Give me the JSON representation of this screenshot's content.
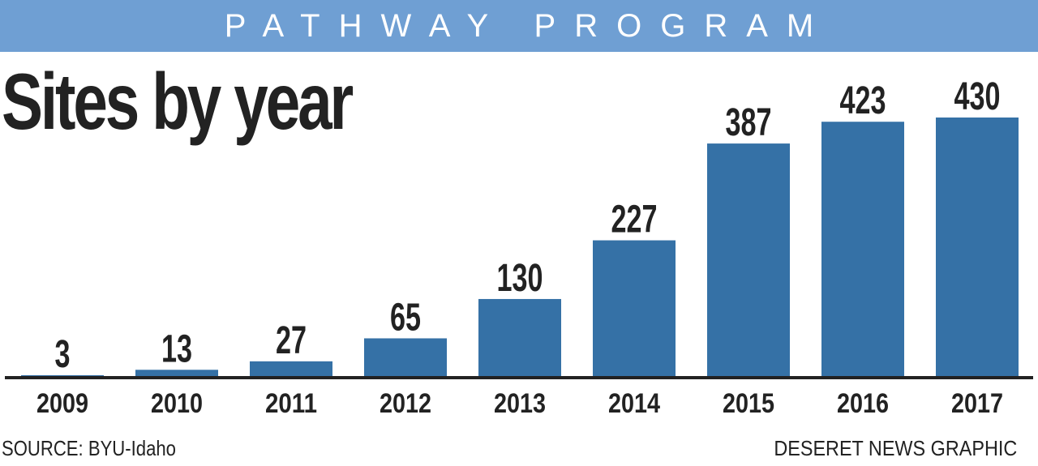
{
  "header": {
    "banner": "PATHWAY PROGRAM"
  },
  "chart_data": {
    "type": "bar",
    "title": "Sites by year",
    "categories": [
      "2009",
      "2010",
      "2011",
      "2012",
      "2013",
      "2014",
      "2015",
      "2016",
      "2017"
    ],
    "values": [
      3,
      13,
      27,
      65,
      130,
      227,
      387,
      423,
      430
    ],
    "xlabel": "",
    "ylabel": "",
    "ylim": [
      0,
      430
    ],
    "grid": false,
    "legend": "none",
    "colors": {
      "bar": "#3571a6",
      "banner": "#6f9fd3"
    }
  },
  "footer": {
    "source": "SOURCE: BYU-Idaho",
    "credit": "DESERET NEWS GRAPHIC"
  }
}
